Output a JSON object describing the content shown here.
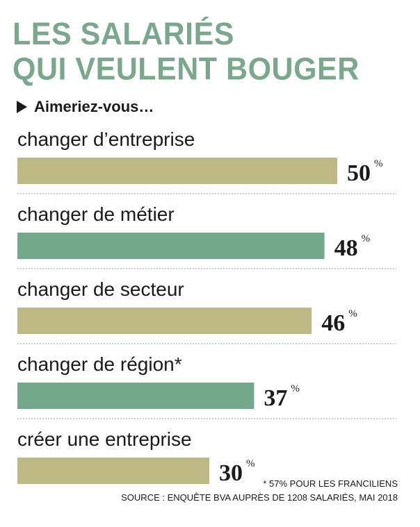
{
  "title_lines": [
    "LES SALARIÉS",
    "QUI VEULENT BOUGER"
  ],
  "subtitle": "Aimeriez-vous…",
  "footnote": "* 57% POUR LES FRANCILIENS",
  "source": "SOURCE : ENQUÊTE BVA AUPRÈS DE 1208 SALARIÉS, MAI 2018",
  "colors": {
    "title": "#7aa88c",
    "khaki": "#bdb985",
    "green": "#74a88a"
  },
  "chart_data": {
    "type": "bar",
    "orientation": "horizontal",
    "categories": [
      "changer d’entreprise",
      "changer de métier",
      "changer de secteur",
      "changer de région*",
      "créer une entreprise"
    ],
    "values": [
      50,
      48,
      46,
      37,
      30
    ],
    "value_suffix": "%",
    "bar_colors": [
      "#bdb985",
      "#74a88a",
      "#bdb985",
      "#74a88a",
      "#bdb985"
    ]
  }
}
